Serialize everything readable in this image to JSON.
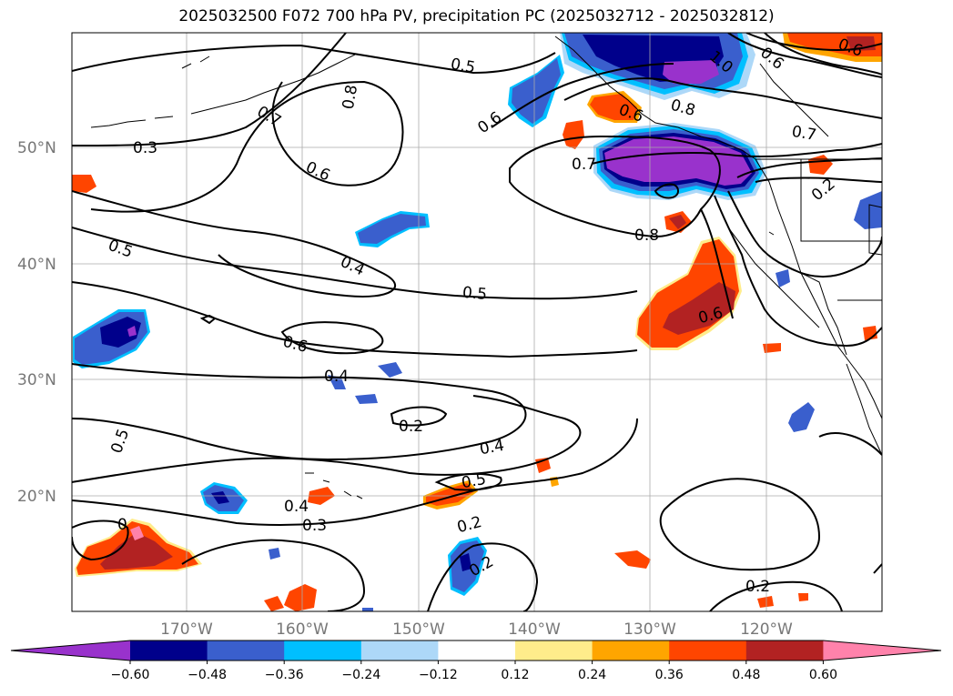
{
  "title": "2025032500 F072 700 hPa PV, precipitation PC (2025032712 - 2025032812)",
  "lat_labels": [
    "50°N",
    "40°N",
    "30°N",
    "20°N"
  ],
  "lon_labels": [
    "170°W",
    "160°W",
    "150°W",
    "140°W",
    "130°W",
    "120°W"
  ],
  "colorbar": {
    "colors": [
      "#9932CC",
      "#00008B",
      "#3A5FCD",
      "#00BFFF",
      "#ADD8F8",
      "#FFFFFF",
      "#FFEC8B",
      "#FFA500",
      "#FF4500",
      "#B22222",
      "#FF82AB"
    ],
    "tick_labels": [
      "−0.60",
      "−0.48",
      "−0.36",
      "−0.24",
      "−0.12",
      "0.12",
      "0.24",
      "0.36",
      "0.48",
      "0.60"
    ]
  },
  "contour_labels": [
    "0.5",
    "0.8",
    "0.7",
    "0.3",
    "0.6",
    "0.5",
    "0.4",
    "0.5",
    "0.6",
    "0.4",
    "0.2",
    "0.4",
    "0.5",
    "0.5",
    "0.4",
    "0.3",
    "0.2",
    "0.2",
    "0.6",
    "0.7",
    "0.8",
    "0.8",
    "0.6",
    "0.7",
    "0.2",
    "0.6",
    "0.2",
    "0",
    "1.0",
    "0.6",
    "0.6"
  ]
}
